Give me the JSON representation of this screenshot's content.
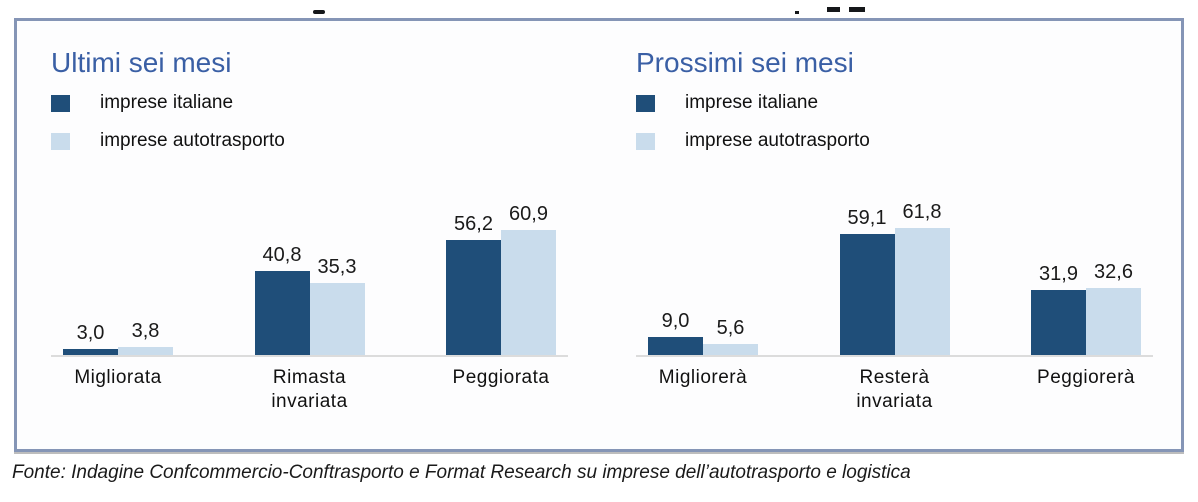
{
  "colors": {
    "dark_series": "#1F4E79",
    "light_series": "#C9DCEC",
    "title": "#3A5FA5",
    "box_border": "#8595B6",
    "axis_line": "#DCDCDC"
  },
  "footer": {
    "source_text": "Fonte: Indagine Confcommercio-Conftrasporto e Format Research su imprese dell’autotrasporto e logistica"
  },
  "chart_data": [
    {
      "type": "bar",
      "title": "Ultimi sei mesi",
      "categories": [
        "Migliorata",
        "Rimasta invariata",
        "Peggiorata"
      ],
      "series": [
        {
          "name": "imprese italiane",
          "values": [
            3.0,
            40.8,
            56.2
          ],
          "labels": [
            "3,0",
            "40,8",
            "56,2"
          ]
        },
        {
          "name": "imprese autotrasporto",
          "values": [
            3.8,
            35.3,
            60.9
          ],
          "labels": [
            "3,8",
            "35,3",
            "60,9"
          ]
        }
      ],
      "ylim": [
        0,
        65
      ],
      "grid": false,
      "legend_position": "top-left",
      "value_labels_shown": true
    },
    {
      "type": "bar",
      "title": "Prossimi sei mesi",
      "categories": [
        "Migliorerà",
        "Resterà invariata",
        "Peggiorerà"
      ],
      "series": [
        {
          "name": "imprese italiane",
          "values": [
            9.0,
            59.1,
            31.9
          ],
          "labels": [
            "9,0",
            "59,1",
            "31,9"
          ]
        },
        {
          "name": "imprese autotrasporto",
          "values": [
            5.6,
            61.8,
            32.6
          ],
          "labels": [
            "5,6",
            "61,8",
            "32,6"
          ]
        }
      ],
      "ylim": [
        0,
        65
      ],
      "grid": false,
      "legend_position": "top-left",
      "value_labels_shown": true
    }
  ]
}
